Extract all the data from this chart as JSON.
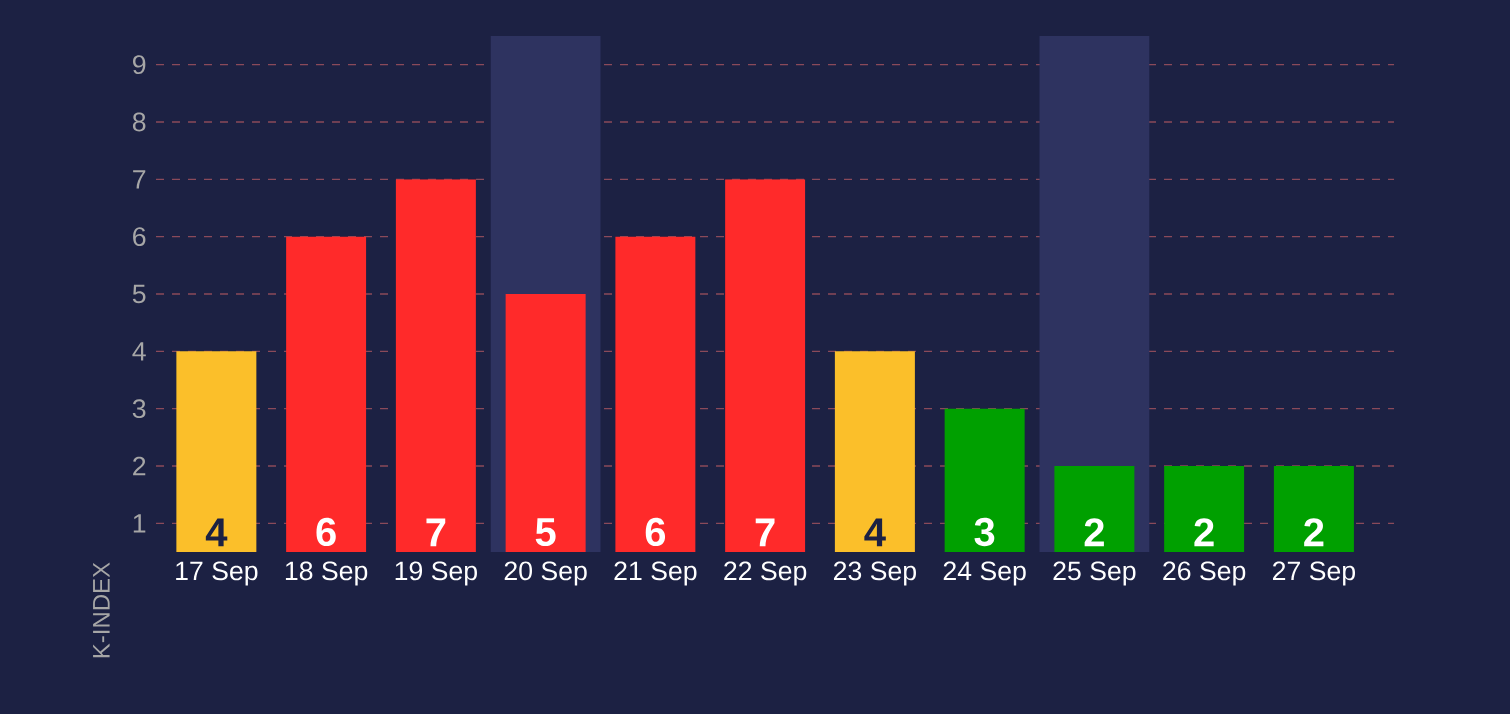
{
  "chart_data": {
    "type": "bar",
    "ylabel": "K-INDEX",
    "categories": [
      "17 Sep",
      "18 Sep",
      "19 Sep",
      "20 Sep",
      "21 Sep",
      "22 Sep",
      "23 Sep",
      "24 Sep",
      "25 Sep",
      "26 Sep",
      "27 Sep",
      null
    ],
    "values": [
      4,
      6,
      7,
      5,
      6,
      7,
      4,
      3,
      2,
      2,
      2,
      null
    ],
    "colors": [
      "#fbbf2a",
      "#ff2a2a",
      "#ff2a2a",
      "#ff2a2a",
      "#ff2a2a",
      "#ff2a2a",
      "#fbbf2a",
      "#00a000",
      "#00a000",
      "#00a000",
      "#00a000",
      "#00a000"
    ],
    "value_labels": [
      "4",
      "6",
      "7",
      "5",
      "6",
      "7",
      "4",
      "3",
      "2",
      "2",
      "2",
      null
    ],
    "ylim": [
      0.5,
      9.5
    ],
    "yticks": [
      1,
      2,
      3,
      4,
      5,
      6,
      7,
      8,
      9
    ],
    "grid": "y",
    "bands": [
      {
        "axis": "x",
        "from": "20 Sep",
        "to": "20 Sep",
        "color": "#2e3360"
      },
      {
        "axis": "x",
        "from": "25 Sep",
        "to": "25 Sep",
        "color": "#2e3360"
      }
    ]
  }
}
